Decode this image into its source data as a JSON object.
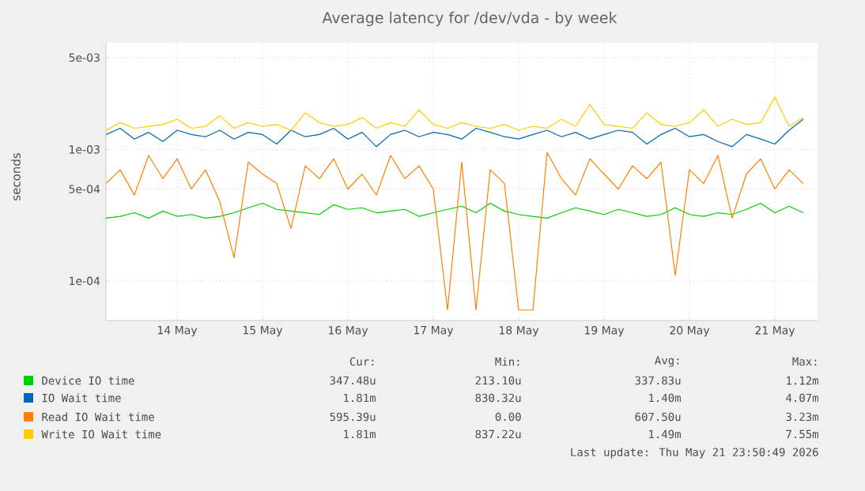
{
  "chart_data": {
    "type": "line",
    "title": "Average latency for /dev/vda - by week",
    "ylabel": "seconds",
    "log": "y",
    "grid": true,
    "legend": "bottom",
    "marker": "none",
    "line_style": "solid",
    "xlim": [
      "2026-05-13T16:00",
      "2026-05-22T00:00"
    ],
    "xticks": [
      {
        "value": "2026-05-14T12:00",
        "label": "14 May"
      },
      {
        "value": "2026-05-15T12:00",
        "label": "15 May"
      },
      {
        "value": "2026-05-16T12:00",
        "label": "16 May"
      },
      {
        "value": "2026-05-17T12:00",
        "label": "17 May"
      },
      {
        "value": "2026-05-18T12:00",
        "label": "18 May"
      },
      {
        "value": "2026-05-19T12:00",
        "label": "19 May"
      },
      {
        "value": "2026-05-20T12:00",
        "label": "20 May"
      },
      {
        "value": "2026-05-21T12:00",
        "label": "21 May"
      }
    ],
    "ylim": [
      5e-05,
      0.0065
    ],
    "yticks": [
      {
        "value": 0.0001,
        "label": "1e-04"
      },
      {
        "value": 0.0005,
        "label": "5e-04"
      },
      {
        "value": 0.001,
        "label": "1e-03"
      },
      {
        "value": 0.005,
        "label": "5e-03"
      }
    ],
    "x": [
      "2026-05-13T16:00",
      "2026-05-13T20:00",
      "2026-05-14T00:00",
      "2026-05-14T04:00",
      "2026-05-14T08:00",
      "2026-05-14T12:00",
      "2026-05-14T16:00",
      "2026-05-14T20:00",
      "2026-05-15T00:00",
      "2026-05-15T04:00",
      "2026-05-15T08:00",
      "2026-05-15T12:00",
      "2026-05-15T16:00",
      "2026-05-15T20:00",
      "2026-05-16T00:00",
      "2026-05-16T04:00",
      "2026-05-16T08:00",
      "2026-05-16T12:00",
      "2026-05-16T16:00",
      "2026-05-16T20:00",
      "2026-05-17T00:00",
      "2026-05-17T04:00",
      "2026-05-17T08:00",
      "2026-05-17T12:00",
      "2026-05-17T16:00",
      "2026-05-17T20:00",
      "2026-05-18T00:00",
      "2026-05-18T04:00",
      "2026-05-18T08:00",
      "2026-05-18T12:00",
      "2026-05-18T16:00",
      "2026-05-18T20:00",
      "2026-05-19T00:00",
      "2026-05-19T04:00",
      "2026-05-19T08:00",
      "2026-05-19T12:00",
      "2026-05-19T16:00",
      "2026-05-19T20:00",
      "2026-05-20T00:00",
      "2026-05-20T04:00",
      "2026-05-20T08:00",
      "2026-05-20T12:00",
      "2026-05-20T16:00",
      "2026-05-20T20:00",
      "2026-05-21T00:00",
      "2026-05-21T04:00",
      "2026-05-21T08:00",
      "2026-05-21T12:00",
      "2026-05-21T16:00",
      "2026-05-21T20:00"
    ],
    "series": [
      {
        "name": "Device IO time",
        "color": "#00cc00",
        "values": [
          0.0003,
          0.00031,
          0.00033,
          0.0003,
          0.00034,
          0.00031,
          0.00032,
          0.0003,
          0.00031,
          0.00033,
          0.00036,
          0.00039,
          0.00035,
          0.00034,
          0.00033,
          0.00032,
          0.00038,
          0.00035,
          0.00036,
          0.00033,
          0.00034,
          0.00035,
          0.00031,
          0.00033,
          0.00035,
          0.00037,
          0.00033,
          0.00039,
          0.00034,
          0.00032,
          0.00031,
          0.0003,
          0.00033,
          0.00036,
          0.00034,
          0.00032,
          0.00035,
          0.00033,
          0.00031,
          0.00032,
          0.00036,
          0.00032,
          0.00031,
          0.00033,
          0.00032,
          0.00035,
          0.00039,
          0.00033,
          0.00037,
          0.00033
        ]
      },
      {
        "name": "IO Wait time",
        "color": "#0066b3",
        "values": [
          0.0013,
          0.00145,
          0.0012,
          0.00135,
          0.00115,
          0.0014,
          0.0013,
          0.00125,
          0.0014,
          0.0012,
          0.00135,
          0.0013,
          0.0011,
          0.0014,
          0.00125,
          0.0013,
          0.00145,
          0.0012,
          0.00135,
          0.00105,
          0.0013,
          0.0014,
          0.00125,
          0.00135,
          0.0013,
          0.0012,
          0.00145,
          0.00135,
          0.00125,
          0.0012,
          0.0013,
          0.0014,
          0.00125,
          0.00135,
          0.0012,
          0.0013,
          0.0014,
          0.00135,
          0.0011,
          0.0013,
          0.00145,
          0.00125,
          0.0013,
          0.00115,
          0.00105,
          0.0013,
          0.0012,
          0.0011,
          0.0014,
          0.0017
        ]
      },
      {
        "name": "Read IO Wait time",
        "color": "#ff8000",
        "values": [
          0.00055,
          0.0007,
          0.00045,
          0.0009,
          0.0006,
          0.00085,
          0.0005,
          0.0007,
          0.0004,
          0.00015,
          0.0008,
          0.00065,
          0.00055,
          0.00025,
          0.00075,
          0.0006,
          0.00085,
          0.0005,
          0.00065,
          0.00045,
          0.0009,
          0.0006,
          0.00075,
          0.0005,
          6e-05,
          0.0008,
          6e-05,
          0.0007,
          0.00055,
          6e-05,
          6e-05,
          0.00095,
          0.0006,
          0.00045,
          0.00085,
          0.00065,
          0.0005,
          0.00075,
          0.0006,
          0.0008,
          0.00011,
          0.0007,
          0.00055,
          0.0009,
          0.0003,
          0.00065,
          0.00085,
          0.0005,
          0.0007,
          0.00055
        ]
      },
      {
        "name": "Write IO Wait time",
        "color": "#ffcc00",
        "values": [
          0.0014,
          0.0016,
          0.00145,
          0.0015,
          0.00155,
          0.0017,
          0.00145,
          0.0015,
          0.0018,
          0.00145,
          0.0016,
          0.0015,
          0.00155,
          0.0014,
          0.0019,
          0.0016,
          0.0015,
          0.00155,
          0.00175,
          0.00145,
          0.0016,
          0.0015,
          0.002,
          0.00155,
          0.00145,
          0.0016,
          0.0015,
          0.00145,
          0.00155,
          0.0014,
          0.0015,
          0.00145,
          0.0017,
          0.0015,
          0.0022,
          0.00155,
          0.0015,
          0.00145,
          0.0019,
          0.00155,
          0.0015,
          0.0016,
          0.002,
          0.0015,
          0.0017,
          0.00155,
          0.0016,
          0.0025,
          0.0015,
          0.00175
        ]
      }
    ],
    "annotations": [
      "Cur:",
      "Min:",
      "Avg:",
      "Max:",
      "347.48u",
      "213.10u",
      "337.83u",
      "1.12m",
      "1.81m",
      "830.32u",
      "1.40m",
      "4.07m",
      "595.39u",
      "0.00",
      "607.50u",
      "3.23m",
      "1.81m",
      "837.22u",
      "1.49m",
      "7.55m",
      "Last update: Thu May 21 23:50:49 2026"
    ]
  }
}
